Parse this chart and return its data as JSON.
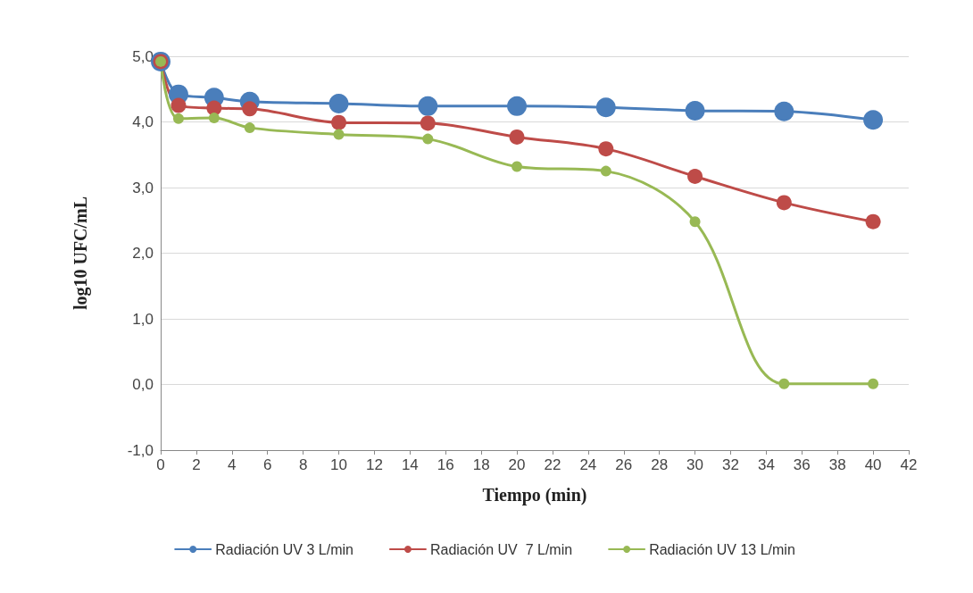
{
  "chart_data": {
    "type": "line",
    "xlabel": "Tiempo (min)",
    "ylabel": "log10 UFC/mL",
    "xlim": [
      0,
      42
    ],
    "xticks": [
      0,
      2,
      4,
      6,
      8,
      10,
      12,
      14,
      16,
      18,
      20,
      22,
      24,
      26,
      28,
      30,
      32,
      34,
      36,
      38,
      40,
      42
    ],
    "ylim": [
      -1,
      5
    ],
    "yticks": [
      {
        "value": -1,
        "label": "-1,0"
      },
      {
        "value": 0,
        "label": "0,0"
      },
      {
        "value": 1,
        "label": "1,0"
      },
      {
        "value": 2,
        "label": "2,0"
      },
      {
        "value": 3,
        "label": "3,0"
      },
      {
        "value": 4,
        "label": "4,0"
      },
      {
        "value": 5,
        "label": "5,0"
      }
    ],
    "x": [
      0,
      1,
      3,
      5,
      10,
      15,
      20,
      25,
      30,
      35,
      40
    ],
    "grid": "y",
    "legend": "bottom",
    "marker": "circle",
    "line_style": "solid",
    "series": [
      {
        "name": "Radiación UV 3 L/min",
        "color": "#4a7ebb",
        "values": [
          4.92,
          4.42,
          4.37,
          4.31,
          4.28,
          4.24,
          4.24,
          4.22,
          4.17,
          4.16,
          4.03
        ]
      },
      {
        "name": "Radiación UV  7 L/min",
        "color": "#be4b48",
        "values": [
          4.92,
          4.25,
          4.21,
          4.2,
          3.99,
          3.98,
          3.77,
          3.59,
          3.17,
          2.77,
          2.48
        ]
      },
      {
        "name": "Radiación UV 13 L/min",
        "color": "#98b954",
        "values": [
          4.92,
          4.05,
          4.06,
          3.91,
          3.81,
          3.74,
          3.32,
          3.25,
          2.48,
          0.01,
          0.01
        ]
      }
    ]
  }
}
